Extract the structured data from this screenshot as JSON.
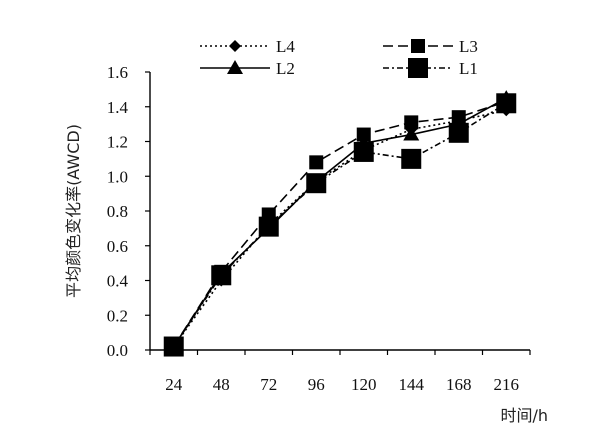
{
  "chart_data": {
    "type": "line",
    "title": "",
    "xlabel": "时间/h",
    "ylabel": "平均颜色变化率(AWCD)",
    "categories": [
      "24",
      "48",
      "72",
      "96",
      "120",
      "144",
      "168",
      "216"
    ],
    "ylim": [
      0.0,
      1.6
    ],
    "yticks": [
      "0.0",
      "0.2",
      "0.4",
      "0.6",
      "0.8",
      "1.0",
      "1.2",
      "1.4",
      "1.6"
    ],
    "grid": false,
    "legend_position": "top",
    "series": [
      {
        "name": "L4",
        "line": "dotted",
        "marker": "diamond",
        "values": [
          0.02,
          0.4,
          0.72,
          0.97,
          1.15,
          1.27,
          1.32,
          1.38
        ]
      },
      {
        "name": "L3",
        "line": "dashed",
        "marker": "square",
        "values": [
          0.02,
          0.45,
          0.78,
          1.08,
          1.24,
          1.31,
          1.34,
          1.43
        ]
      },
      {
        "name": "L2",
        "line": "solid",
        "marker": "triangle",
        "values": [
          0.02,
          0.44,
          0.7,
          0.97,
          1.19,
          1.24,
          1.3,
          1.45
        ]
      },
      {
        "name": "L1",
        "line": "dash-dot",
        "marker": "large-square",
        "values": [
          0.02,
          0.43,
          0.71,
          0.96,
          1.14,
          1.1,
          1.25,
          1.42
        ]
      }
    ]
  },
  "colors": {
    "ink": "#000000"
  }
}
